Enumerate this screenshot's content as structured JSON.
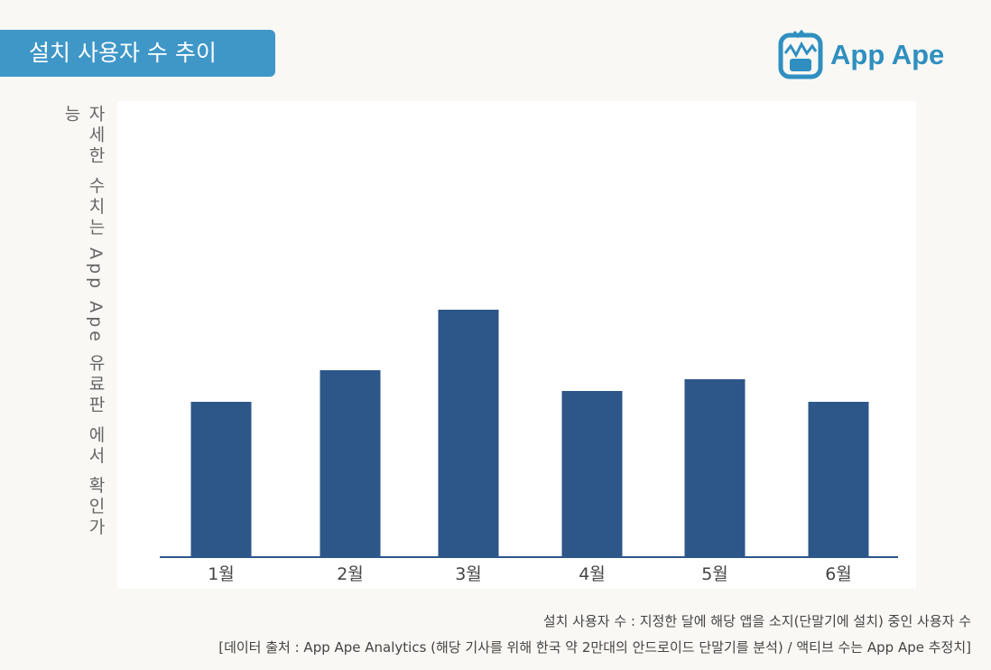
{
  "header": {
    "title": "설치 사용자 수 추이",
    "logo_text": "App Ape"
  },
  "chart_data": {
    "type": "bar",
    "title": "설치 사용자 수 추이",
    "categories": [
      "1월",
      "2월",
      "3월",
      "4월",
      "5월",
      "6월"
    ],
    "values": [
      172,
      207,
      274,
      184,
      197,
      172
    ],
    "ylabel": "자세한 수치는 App Ape 유료판 에서 확인가능",
    "xlabel": "",
    "ylim": [
      0,
      300
    ],
    "grid": false,
    "color": "#2d5689"
  },
  "footer": {
    "definition": "설치 사용자 수 : 지정한 달에 해당 앱을 소지(단말기에 설치) 중인 사용자 수",
    "source": "[데이터 출처 : App Ape Analytics (해당 기사를 위해 한국 약 2만대의 안드로이드 단말기를 분석) / 액티브 수는 App Ape 추정치]"
  }
}
